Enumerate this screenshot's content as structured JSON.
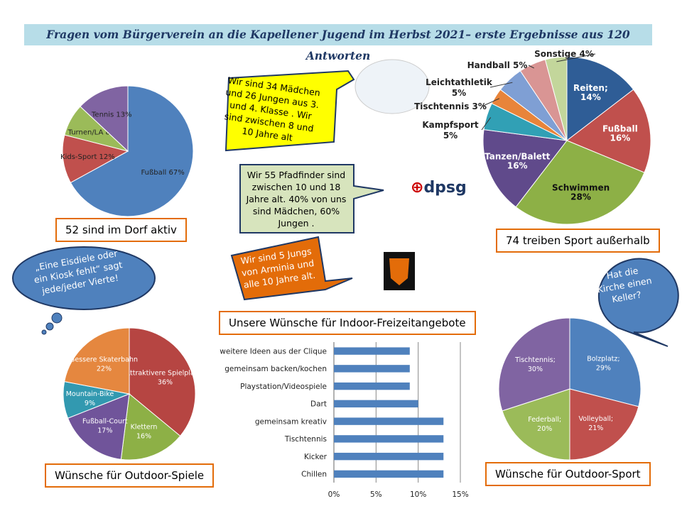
{
  "title": "Fragen vom Bürgerverein an die Kapellener Jugend im Herbst 2021– erste Ergebnisse aus 120 Antworten",
  "captions": {
    "dorf": "52 sind im Dorf aktiv",
    "sport": "74 treiben Sport außerhalb",
    "outdoor_spiele": "Wünsche für Outdoor-Spiele",
    "outdoor_sport": "Wünsche für Outdoor-Sport",
    "indoor": "Unsere Wünsche für Indoor-Freizeitangebote"
  },
  "callouts": {
    "grundschule": "Wir sind 34 Mädchen und 26 Jungen aus 3. und 4. Klasse . Wir sind zwischen 8 und 10 Jahre alt",
    "pfadfinder": "Wir 55 Pfadfinder sind zwischen 10 und 18 Jahre alt. 40% von uns sind Mädchen, 60% Jungen .",
    "arminia": "Wir sind 5 Jungs von Arminia und alle 10 Jahre alt.",
    "eisdiele": "„Eine Eisdiele oder ein Kiosk fehlt“ sagt jede/jeder Vierte!",
    "kirche": "Hat die Kirche einen Keller?"
  },
  "logos": {
    "dpsg": "dpsg"
  },
  "chart_data": [
    {
      "type": "pie",
      "id": "dorf",
      "labels": [
        "Fußball 67%",
        "Kids-Sport 12%",
        "Turnen/LA 8%",
        "Tennis 13%"
      ],
      "values": [
        67,
        12,
        8,
        13
      ],
      "colors": [
        "#4f81bd",
        "#c0504d",
        "#9bbb59",
        "#8064a2"
      ]
    },
    {
      "type": "pie",
      "id": "sport",
      "labels": [
        "Reiten; 14%",
        "Fußball 16%",
        "Schwimmen 28%",
        "Tanzen/Balett 16%",
        "Kampfsport 5%",
        "Tischtennis 3%",
        "Leichtathletik 5%",
        "Handball 5%",
        "Sonstige 4%"
      ],
      "values": [
        14,
        16,
        28,
        16,
        5,
        3,
        5,
        5,
        4
      ],
      "colors": [
        "#2f5d96",
        "#c0504d",
        "#8db046",
        "#604a8b",
        "#31a0b5",
        "#e8843a",
        "#7f9fd4",
        "#d99594",
        "#c3d69b"
      ]
    },
    {
      "type": "pie",
      "id": "outdoor_spiele",
      "labels": [
        "Attraktivere Spielplätze 36%",
        "Klettern 16%",
        "Fußball-Court 17%",
        "Mountain-Bike 9%",
        "Bessere Skaterbahn 22%"
      ],
      "values": [
        36,
        16,
        17,
        9,
        22
      ],
      "colors": [
        "#b64542",
        "#8db046",
        "#70549a",
        "#3299b0",
        "#e5873f"
      ]
    },
    {
      "type": "pie",
      "id": "outdoor_sport",
      "labels": [
        "Bolzplatz; 29%",
        "Volleyball; 21%",
        "Federball; 20%",
        "Tischtennis; 30%"
      ],
      "values": [
        29,
        21,
        20,
        30
      ],
      "colors": [
        "#4f81bd",
        "#c0504d",
        "#9bbb59",
        "#8064a2"
      ]
    },
    {
      "type": "bar",
      "orientation": "horizontal",
      "id": "indoor",
      "title": "Unsere Wünsche für Indoor-Freizeitangebote",
      "categories": [
        "weitere Ideen aus der Clique",
        "gemeinsam backen/kochen",
        "Playstation/Videospiele",
        "Dart",
        "gemeinsam kreativ",
        "Tischtennis",
        "Kicker",
        "Chillen"
      ],
      "values": [
        9,
        9,
        9,
        10,
        13,
        13,
        13,
        13
      ],
      "xlim": [
        0,
        15
      ],
      "ticks": [
        "0%",
        "5%",
        "10%",
        "15%"
      ],
      "grid": true,
      "color": "#4f81bd"
    }
  ]
}
